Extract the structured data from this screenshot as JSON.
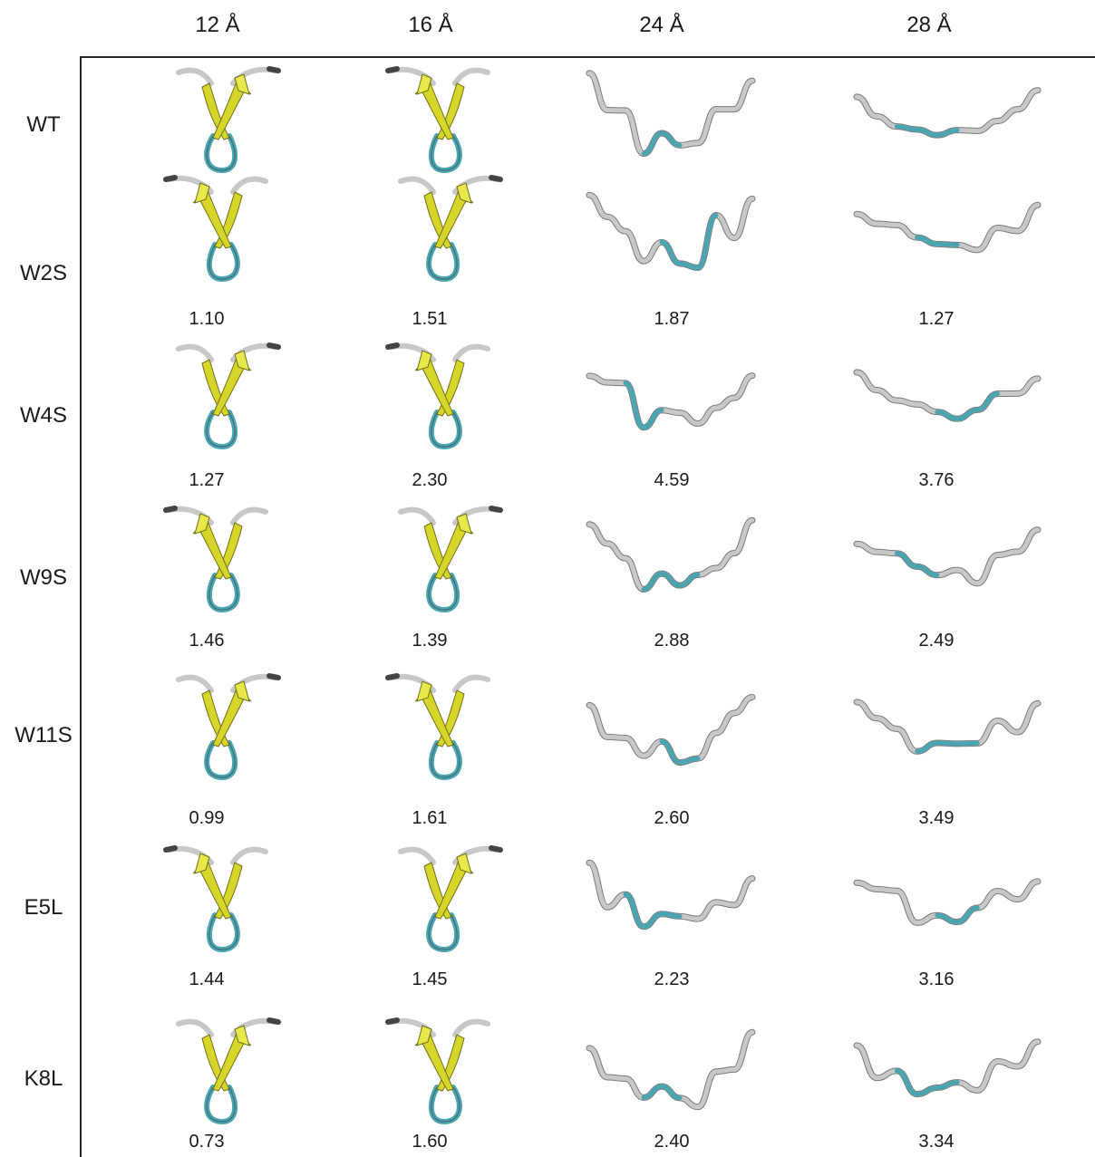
{
  "columns": [
    "12 Å",
    "16 Å",
    "24 Å",
    "28 Å"
  ],
  "rows": [
    {
      "label": "WT",
      "values": [
        "",
        "",
        "",
        ""
      ]
    },
    {
      "label": "W2S",
      "values": [
        "1.10",
        "1.51",
        "1.87",
        "1.27"
      ]
    },
    {
      "label": "W4S",
      "values": [
        "1.27",
        "2.30",
        "4.59",
        "3.76"
      ]
    },
    {
      "label": "W9S",
      "values": [
        "1.46",
        "1.39",
        "2.88",
        "2.49"
      ]
    },
    {
      "label": "W11S",
      "values": [
        "0.99",
        "1.61",
        "2.60",
        "3.49"
      ]
    },
    {
      "label": "E5L",
      "values": [
        "1.44",
        "1.45",
        "2.23",
        "3.16"
      ]
    },
    {
      "label": "K8L",
      "values": [
        "0.73",
        "1.60",
        "2.40",
        "3.34"
      ]
    }
  ],
  "colors": {
    "coil": "#c8c8c8",
    "coil_dark": "#444444",
    "turn": "#4aa5b3",
    "strand": "#d6d62a",
    "strand_edge": "#6e6e16",
    "frame": "#222222"
  },
  "structure_types": {
    "12 Å": "beta-hairpin",
    "16 Å": "beta-hairpin",
    "24 Å": "random-coil",
    "28 Å": "random-coil"
  }
}
